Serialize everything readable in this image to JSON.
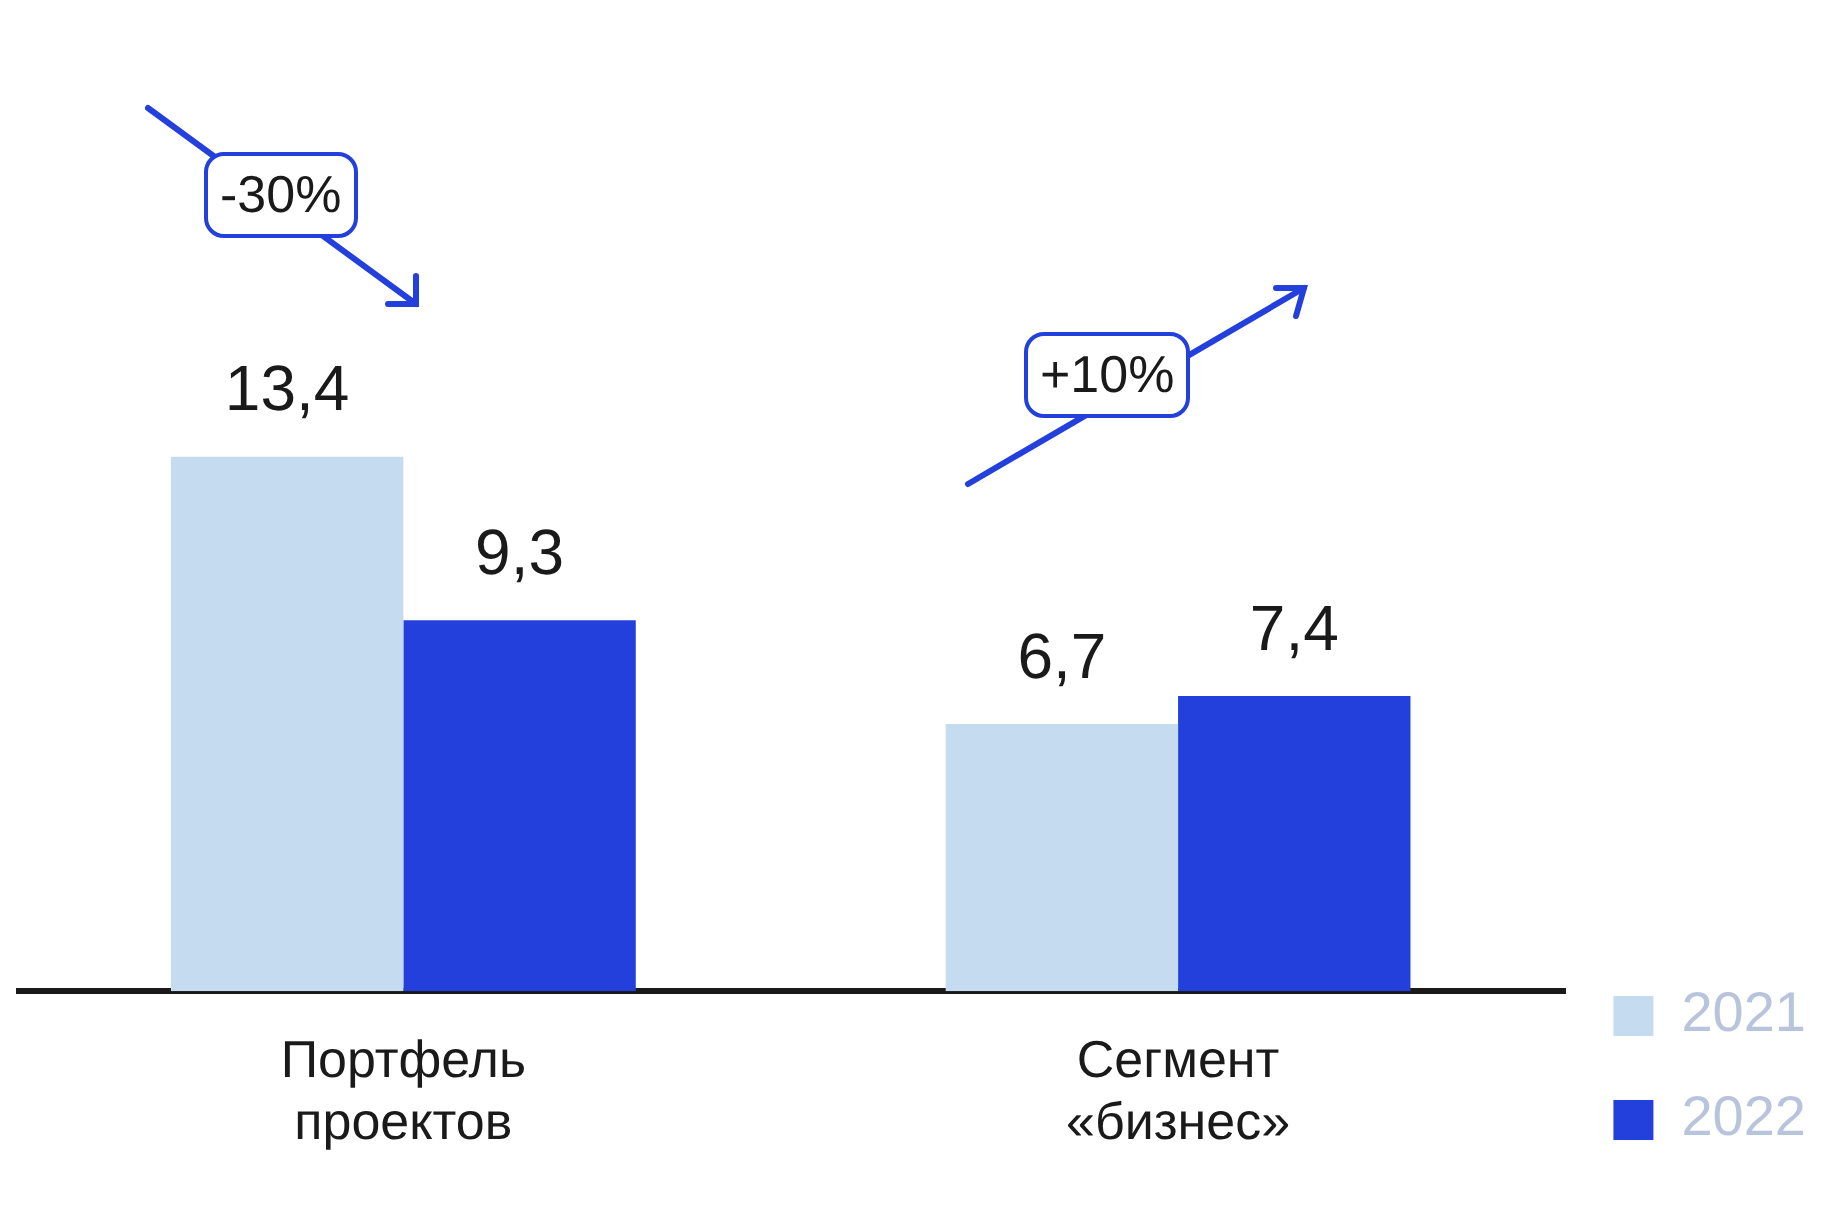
{
  "chart_data": {
    "type": "bar",
    "categories": [
      "Портфель проектов",
      "Сегмент «бизнес»"
    ],
    "series": [
      {
        "name": "2021",
        "color": "#c5dbf0",
        "values": [
          13.4,
          6.7
        ],
        "value_labels": [
          "13,4",
          "6,7"
        ]
      },
      {
        "name": "2022",
        "color": "#2340dc",
        "values": [
          9.3,
          7.4
        ],
        "value_labels": [
          "9,3",
          "7,4"
        ]
      }
    ],
    "annotations": [
      "-30%",
      "+10%"
    ],
    "legend": "bottom right",
    "grid": false,
    "tick_labels": "x"
  }
}
